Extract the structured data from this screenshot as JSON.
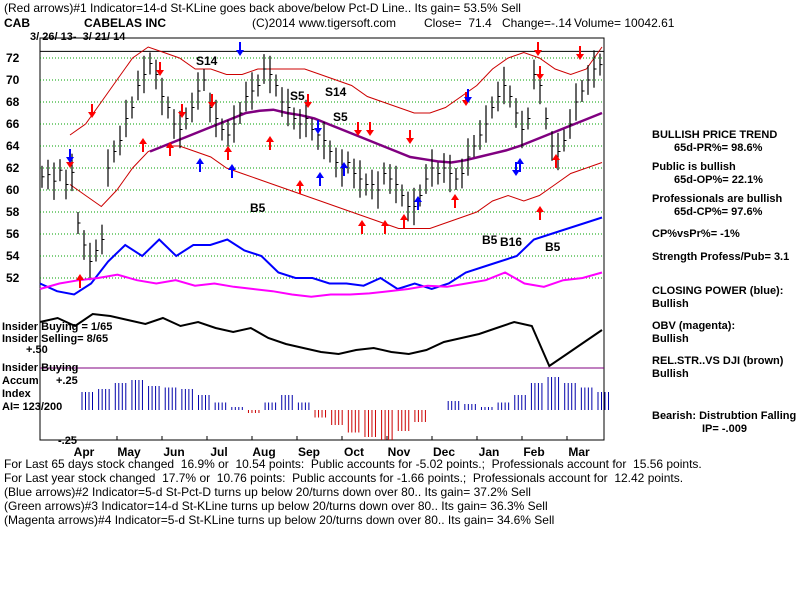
{
  "header": {
    "line1": "(Red arrows)#1 Indicator=14-d St-KLine goes back above/below Pct-D Line.. Its gain= 53.5% Sell",
    "symbol": "CAB",
    "company": "CABELAS INC",
    "copyright": "(C)2014 www.tigersoft.com",
    "close": "Close=  71.4",
    "change": "Change=-.14",
    "volume": "Volume= 10042.61",
    "date_range": "3/ 26/ 13-  3/ 21/ 14"
  },
  "colors": {
    "price": "#000000",
    "bands": "#cc0000",
    "ma": "#800080",
    "closing_power": "#0000ff",
    "obv": "#ff00ff",
    "relstr": "#000000",
    "accum_pos": "#0000aa",
    "accum_neg": "#cc0000",
    "grid": "#00a000",
    "red_arrow": "#ff0000",
    "blue_arrow": "#0000ff",
    "green_arrow": "#00aa00"
  },
  "chart_data": {
    "type": "line",
    "x_ticks": [
      "Apr",
      "May",
      "Jun",
      "Jul",
      "Aug",
      "Sep",
      "Oct",
      "Nov",
      "Dec",
      "Jan",
      "Feb",
      "Mar"
    ],
    "y_ticks": [
      72,
      70,
      68,
      66,
      64,
      62,
      60,
      58,
      56,
      54,
      52
    ],
    "ylim": [
      50.5,
      73.5
    ],
    "ref_line": 72.6,
    "price_close": [
      61.2,
      61.4,
      60.8,
      61.8,
      60.5,
      61.6,
      57,
      55,
      53.5,
      54.5,
      55.5,
      62,
      63.5,
      64.5,
      66.5,
      67.5,
      69.5,
      70.5,
      71.5,
      70.5,
      68.5,
      67.5,
      66,
      65.5,
      66.5,
      67.5,
      69,
      70,
      67.5,
      66.5,
      65.5,
      65,
      66,
      67,
      68.5,
      69,
      69.5,
      71,
      70.5,
      69.5,
      68,
      67.5,
      66.5,
      66,
      66.5,
      65.5,
      65,
      64.5,
      63.5,
      62.5,
      62,
      62.5,
      61.5,
      61,
      60.5,
      60.5,
      60,
      61.5,
      61,
      60.5,
      59.5,
      58.5,
      58.5,
      59.5,
      61,
      62,
      61.5,
      62,
      61.5,
      61,
      61.5,
      63,
      64,
      65,
      66,
      67.5,
      68.5,
      69.5,
      68.5,
      67,
      65.5,
      66.5,
      70.5,
      69.5,
      66.5,
      64,
      63.5,
      64.5,
      66,
      68,
      69,
      70,
      71,
      71.4
    ],
    "bands_upper": [
      65,
      66,
      68,
      70,
      72,
      73,
      72.5,
      72,
      71,
      71,
      70.5,
      70.5,
      71,
      71,
      71,
      71,
      70.5,
      70,
      69.5,
      68.5,
      68,
      67.5,
      67,
      67,
      67.5,
      68.5,
      69.5,
      71,
      72,
      72.5,
      72,
      71,
      70.5,
      71,
      73
    ],
    "bands_lower": [
      60.5,
      59.5,
      58.5,
      60,
      62,
      63.5,
      64,
      64,
      63.5,
      63,
      62,
      61.5,
      61,
      60.5,
      60,
      59.5,
      59,
      58.5,
      58,
      57.5,
      57,
      56.5,
      56.5,
      56.5,
      57,
      57.5,
      58,
      59,
      59.5,
      59,
      59.5,
      60.5,
      61.5,
      62,
      62.5
    ],
    "ma": [
      63.5,
      64,
      64.5,
      65,
      65.5,
      66,
      66.5,
      67,
      67.2,
      67.3,
      67,
      66.8,
      66.5,
      66,
      65.5,
      65,
      64.5,
      64,
      63.5,
      63,
      62.8,
      62.6,
      62.5,
      62.7,
      63,
      63.3,
      63.6,
      64,
      64.5,
      65,
      65.5,
      66,
      66.5,
      67
    ],
    "closing_power": [
      51.5,
      50.8,
      50.5,
      51.5,
      53.5,
      55,
      54,
      55.5,
      54,
      55,
      55,
      55.5,
      54.5,
      54,
      52.5,
      52,
      52,
      51.5,
      51.5,
      51.3,
      52,
      51,
      51.5,
      51,
      51.5,
      52.5,
      53,
      53.5,
      54,
      55.5,
      56,
      56.5,
      57,
      57.5
    ],
    "obv": [
      51,
      51.5,
      51.8,
      52,
      52.3,
      51.8,
      51.5,
      51.8,
      51.3,
      51.5,
      51.2,
      51,
      50.8,
      50.5,
      50.3,
      50.5,
      50.5,
      50.6,
      50.8,
      51,
      51.3,
      51.2,
      51.5,
      51.8,
      52.5,
      51.5,
      51.2,
      51.8,
      52,
      52.5
    ],
    "accum": [
      0.12,
      0.14,
      0.18,
      0.2,
      0.16,
      0.15,
      0.14,
      0.1,
      0.05,
      0.02,
      -0.02,
      0.05,
      0.1,
      0.05,
      -0.05,
      -0.1,
      -0.15,
      -0.18,
      -0.2,
      -0.14,
      -0.08,
      0.0,
      0.06,
      0.04,
      0.02,
      0.05,
      0.1,
      0.18,
      0.22,
      0.18,
      0.15,
      0.12
    ]
  },
  "left_labels": {
    "insider_buying": "Insider Buying = 1/65",
    "insider_selling": "Insider Selling= 8/65",
    "plus50": "+.50",
    "insider_buying_accum": "Insider Buying",
    "accum": "Accum",
    "index": "Index",
    "plus25": "+.25",
    "ai": "AI= 123/200",
    "minus25": "-.25"
  },
  "chart_labels": {
    "s14_a": "S14",
    "s14_b": "S14",
    "s5_a": "S5",
    "s5_b": "S5",
    "b5_a": "B5",
    "b5_b": "B5",
    "b16": "B16",
    "b5_c": "B5"
  },
  "side_panel": {
    "bullish_trend_title": "BULLISH PRICE TREND",
    "pr": "65d-PR%= 98.6%",
    "public_title": "Public is bullish",
    "op": "65d-OP%= 22.1%",
    "pros_title": "Professionals are bullish",
    "cp": "65d-CP%= 97.6%",
    "cpvspr": "CP%vsPr%= -1%",
    "strength": "Strength Profess/Pub= 3.1",
    "closing_power_title": "CLOSING POWER (blue):",
    "closing_power_val": "Bullish",
    "obv_title": "OBV (magenta):",
    "obv_val": "Bullish",
    "relstr_title": "REL.STR..VS DJI (brown)",
    "relstr_val": "Bullish",
    "bearish": "Bearish: Distrubtion Falling",
    "ip": "IP= -.009"
  },
  "footer": {
    "line1": "For Last 65 days stock changed  16.9% or  10.54 points:  Public accounts for -5.02 points.;  Professionals account for  15.56 points.",
    "line2": "For Last year stock changed  17.7% or  10.76 points:  Public accounts for -1.66 points.;  Professionals account for  12.42 points.",
    "line3": "(Blue arrows)#2 Indicator=5-d St-Pct-D turns up below 20/turns down over 80.. Its gain= 37.2% Sell",
    "line4": "(Green arrows)#3 Indicator=14-d St-KLine turns up below 20/turns down over 80.. Its gain= 36.3% Sell",
    "line5": "(Magenta arrows)#4 Indicator=5-d St-KLine turns up below 20/turns down over 80.. Its gain= 34.6% Sell"
  }
}
